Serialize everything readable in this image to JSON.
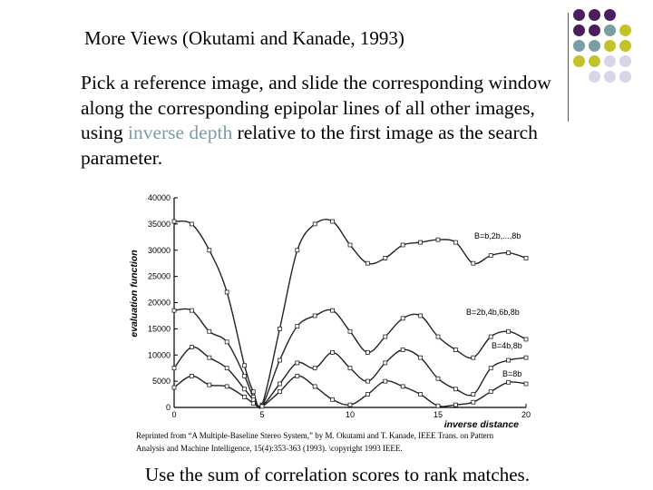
{
  "slide": {
    "title": "More Views (Okutami and Kanade, 1993)",
    "body_before": "Pick a reference image, and slide the corresponding window along the corresponding epipolar lines of all other images, using ",
    "body_highlight": "inverse depth",
    "body_after": " relative to the first image as the search parameter.",
    "caption_line1": "Reprinted from “A Multiple-Baseline Stereo System,” by M. Okutami and T. Kanade, IEEE Trans. on Pattern",
    "caption_line2": "Analysis and Machine Intelligence, 15(4):353-363 (1993). \\copyright 1993 IEEE.",
    "footer": "Use the sum of correlation scores to rank matches."
  },
  "colors": {
    "highlight": "#7a9ea6",
    "purple": "#4b1e5e",
    "teal": "#7a9ea6",
    "olive": "#c3c22a",
    "lavender": "#d8d6e6"
  },
  "decor_dots": [
    [
      "purple",
      "purple",
      "purple",
      ""
    ],
    [
      "purple",
      "purple",
      "teal",
      "olive"
    ],
    [
      "teal",
      "teal",
      "olive",
      "olive"
    ],
    [
      "olive",
      "olive",
      "lavender",
      "lavender"
    ],
    [
      "",
      "lavender",
      "lavender",
      "lavender"
    ]
  ],
  "chart_data": {
    "type": "line",
    "xlabel": "inverse distance",
    "ylabel": "evaluation function",
    "xlim": [
      0,
      20
    ],
    "ylim": [
      0,
      40000
    ],
    "xticks": [
      0,
      5,
      10,
      15,
      20
    ],
    "yticks": [
      0,
      5000,
      10000,
      15000,
      20000,
      25000,
      30000,
      35000,
      40000
    ],
    "series": [
      {
        "name": "B=b,2b,...,8b",
        "x": [
          0,
          1,
          2,
          3,
          4,
          4.5,
          5,
          6,
          7,
          8,
          9,
          10,
          11,
          12,
          13,
          14,
          15,
          16,
          17,
          18,
          19,
          20
        ],
        "y": [
          35500,
          35000,
          30000,
          22000,
          8000,
          3000,
          500,
          15000,
          30000,
          35000,
          35500,
          31000,
          27500,
          28500,
          31000,
          31500,
          32000,
          31500,
          27500,
          29000,
          29500,
          28500
        ]
      },
      {
        "name": "B=2b,4b,6b,8b",
        "x": [
          0,
          1,
          2,
          3,
          4,
          4.5,
          5,
          6,
          7,
          8,
          9,
          10,
          11,
          12,
          13,
          14,
          15,
          16,
          17,
          18,
          19,
          20
        ],
        "y": [
          18500,
          18500,
          14500,
          12500,
          6000,
          2000,
          300,
          9000,
          15500,
          17500,
          18500,
          14500,
          10500,
          13500,
          17000,
          17500,
          13500,
          11000,
          9500,
          13500,
          14500,
          13000
        ]
      },
      {
        "name": "B=4b,8b",
        "x": [
          0,
          1,
          2,
          3,
          4,
          4.5,
          5,
          6,
          7,
          8,
          9,
          10,
          11,
          12,
          13,
          14,
          15,
          16,
          17,
          18,
          19,
          20
        ],
        "y": [
          7500,
          11500,
          9500,
          7500,
          3500,
          1500,
          300,
          4500,
          8500,
          7500,
          10500,
          7500,
          5000,
          8500,
          11000,
          9500,
          5500,
          3500,
          2500,
          7500,
          9000,
          9500
        ]
      },
      {
        "name": "B=8b",
        "x": [
          0,
          1,
          2,
          3,
          4,
          4.5,
          5,
          6,
          7,
          8,
          9,
          10,
          11,
          12,
          13,
          14,
          15,
          16,
          17,
          18,
          19,
          20
        ],
        "y": [
          3800,
          6000,
          4300,
          4000,
          2000,
          800,
          200,
          3000,
          6000,
          4000,
          1500,
          500,
          2500,
          5000,
          4000,
          2500,
          300,
          500,
          1000,
          3000,
          4800,
          4500
        ]
      }
    ]
  }
}
